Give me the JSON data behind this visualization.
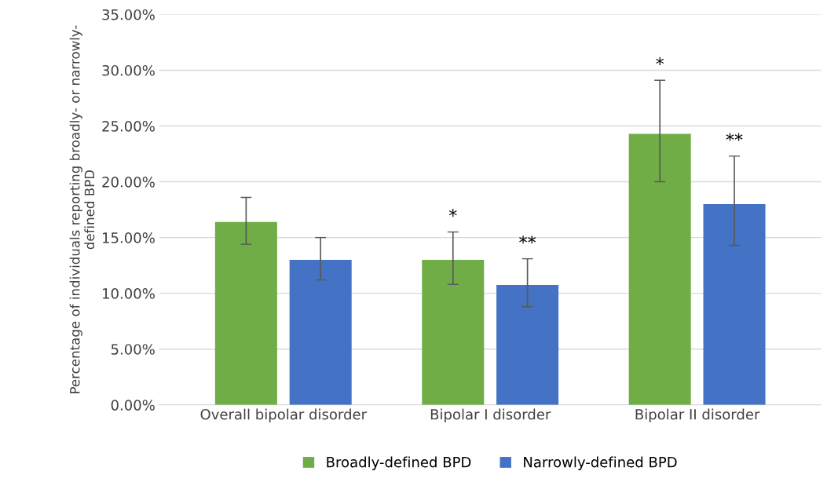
{
  "chart_data": {
    "type": "bar",
    "ylabel": "Percentage of individuals reporting broadly- or narrowly- defined BPD",
    "categories": [
      "Overall bipolar disorder",
      "Bipolar I disorder",
      "Bipolar II disorder"
    ],
    "series": [
      {
        "name": "Broadly-defined BPD",
        "color": "#70ad47",
        "values": [
          16.4,
          13.0,
          24.3
        ],
        "errors": [
          [
            14.4,
            18.6
          ],
          [
            10.8,
            15.5
          ],
          [
            20.0,
            29.1
          ]
        ]
      },
      {
        "name": "Narrowly-defined BPD",
        "color": "#4472c4",
        "values": [
          13.0,
          10.75,
          18.0
        ],
        "errors": [
          [
            11.2,
            15.0
          ],
          [
            8.8,
            13.1
          ],
          [
            14.3,
            22.3
          ]
        ]
      }
    ],
    "ylim": [
      0,
      35
    ],
    "yticks": [
      {
        "value": 0,
        "label": "0.00%"
      },
      {
        "value": 5,
        "label": "5.00%"
      },
      {
        "value": 10,
        "label": "10.00%"
      },
      {
        "value": 15,
        "label": "15.00%"
      },
      {
        "value": 20,
        "label": "20.00%"
      },
      {
        "value": 25,
        "label": "25.00%"
      },
      {
        "value": 30,
        "label": "30.00%"
      },
      {
        "value": 35,
        "label": "35.00%"
      }
    ],
    "annotations": [
      "*",
      "**",
      "*",
      "**"
    ],
    "grid": "y",
    "legend": "bottom"
  }
}
